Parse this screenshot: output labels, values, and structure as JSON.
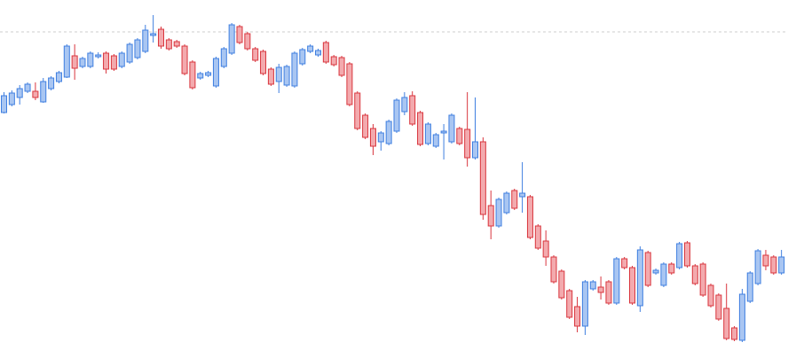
{
  "chart_data": {
    "type": "candlestick",
    "ylim": [
      0,
      404
    ],
    "reference_line": 368,
    "up_color": "#3f7fe0",
    "up_fill": "#a9c6f2",
    "down_color": "#d9363e",
    "down_fill": "#f3aaae",
    "open": [
      277,
      286,
      294,
      301,
      301,
      289,
      304,
      312,
      317,
      341,
      329,
      329,
      340,
      344,
      341,
      329,
      334,
      339,
      346,
      364,
      371,
      359,
      357,
      352,
      334,
      316,
      319,
      307,
      329,
      344,
      374,
      366,
      349,
      346,
      326,
      312,
      308,
      307,
      332,
      346,
      342,
      356,
      340,
      339,
      332,
      299,
      274,
      259,
      244,
      242,
      256,
      278,
      296,
      277,
      242,
      239,
      254,
      244,
      259,
      258,
      226,
      244,
      172,
      149,
      164,
      189,
      182,
      182,
      149,
      132,
      114,
      98,
      76,
      58,
      36,
      78,
      80,
      86,
      62,
      112,
      102,
      59,
      119,
      96,
      82,
      106,
      102,
      130,
      104,
      106,
      82,
      71,
      56,
      34,
      20,
      64,
      84,
      116,
      114,
      96
    ],
    "high": [
      300,
      302,
      308,
      311,
      311,
      316,
      318,
      324,
      354,
      354,
      340,
      346,
      345,
      346,
      343,
      346,
      356,
      361,
      376,
      387,
      374,
      361,
      359,
      354,
      336,
      323,
      324,
      340,
      351,
      378,
      376,
      368,
      351,
      348,
      328,
      332,
      331,
      346,
      350,
      354,
      349,
      358,
      342,
      341,
      334,
      301,
      276,
      264,
      256,
      269,
      293,
      300,
      301,
      279,
      266,
      254,
      264,
      276,
      261,
      300,
      294,
      249,
      189,
      181,
      188,
      191,
      221,
      184,
      151,
      144,
      116,
      100,
      78,
      69,
      88,
      88,
      92,
      88,
      114,
      114,
      104,
      126,
      121,
      101,
      108,
      108,
      131,
      132,
      106,
      108,
      84,
      73,
      84,
      36,
      78,
      98,
      123,
      122,
      116,
      122
    ],
    "low": [
      276,
      284,
      286,
      299,
      291,
      288,
      302,
      310,
      316,
      314,
      327,
      327,
      338,
      321,
      324,
      327,
      332,
      337,
      344,
      356,
      349,
      347,
      350,
      319,
      303,
      314,
      317,
      305,
      327,
      342,
      354,
      347,
      334,
      319,
      307,
      299,
      306,
      305,
      330,
      344,
      340,
      332,
      329,
      317,
      284,
      257,
      247,
      229,
      234,
      240,
      254,
      274,
      262,
      239,
      240,
      237,
      224,
      242,
      240,
      216,
      224,
      156,
      134,
      147,
      162,
      167,
      164,
      134,
      122,
      104,
      84,
      66,
      44,
      29,
      26,
      76,
      66,
      60,
      60,
      100,
      60,
      52,
      80,
      94,
      80,
      94,
      100,
      102,
      82,
      69,
      57,
      42,
      20,
      19,
      18,
      62,
      82,
      99,
      94,
      94
    ],
    "close": [
      296,
      299,
      304,
      309,
      294,
      312,
      316,
      322,
      352,
      327,
      338,
      344,
      342,
      326,
      326,
      344,
      354,
      359,
      370,
      366,
      352,
      349,
      352,
      321,
      305,
      321,
      322,
      338,
      349,
      376,
      356,
      349,
      336,
      321,
      309,
      328,
      329,
      344,
      348,
      352,
      347,
      334,
      331,
      319,
      286,
      259,
      249,
      239,
      254,
      267,
      291,
      294,
      264,
      241,
      264,
      252,
      256,
      274,
      242,
      226,
      244,
      162,
      149,
      179,
      186,
      169,
      186,
      136,
      124,
      114,
      86,
      68,
      46,
      36,
      86,
      86,
      74,
      62,
      112,
      102,
      62,
      122,
      82,
      99,
      106,
      96,
      129,
      104,
      84,
      71,
      59,
      44,
      22,
      21,
      72,
      96,
      121,
      104,
      96,
      114
    ]
  }
}
